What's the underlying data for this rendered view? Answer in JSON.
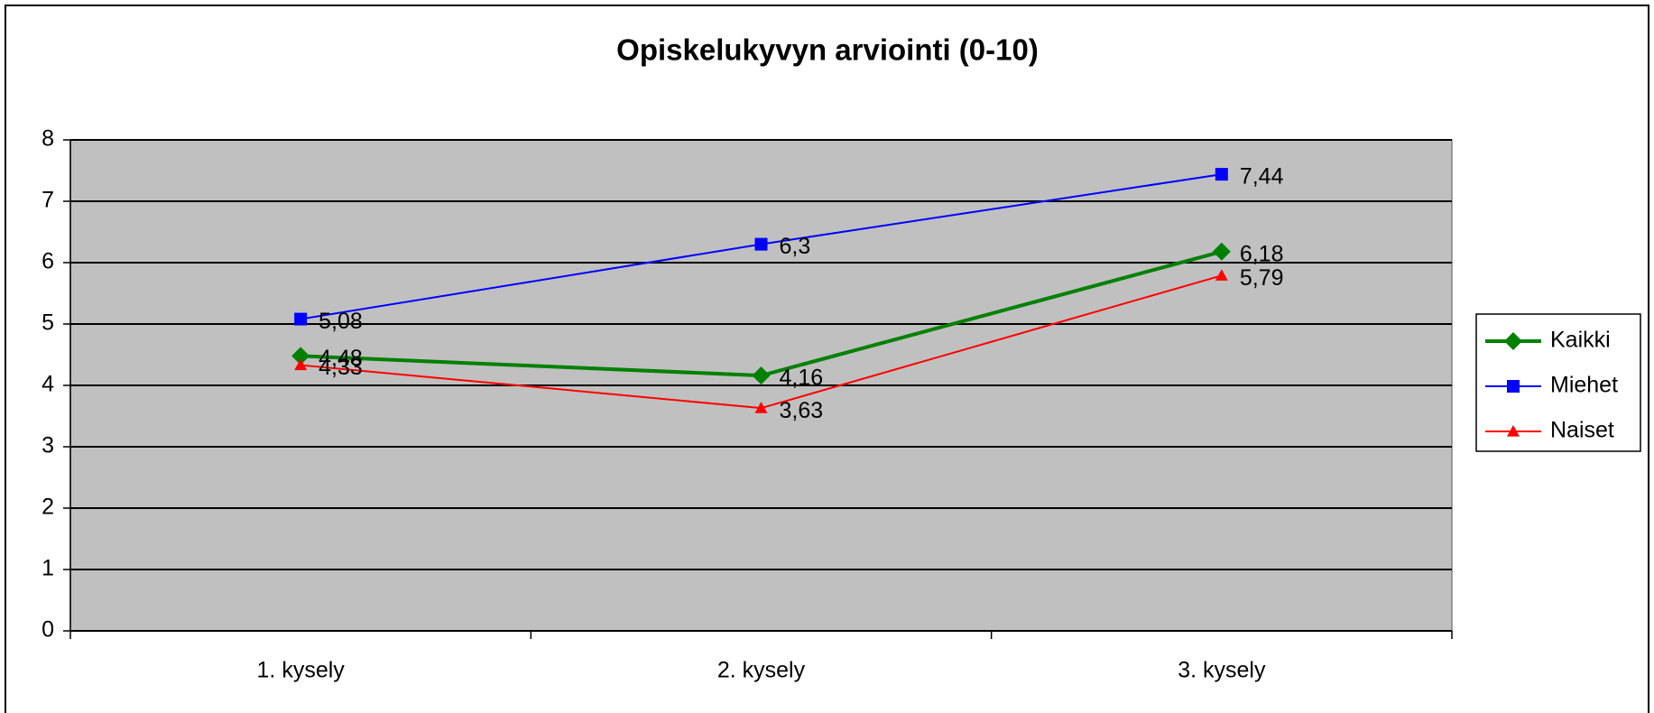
{
  "chart_data": {
    "type": "line",
    "title": "Opiskelukyvyn arviointi (0-10)",
    "categories": [
      "1. kysely",
      "2. kysely",
      "3. kysely"
    ],
    "series": [
      {
        "name": "Kaikki",
        "color": "#008000",
        "marker": "diamond",
        "width": 4,
        "values": [
          4.48,
          4.16,
          6.18
        ],
        "value_labels": [
          "4,48",
          "4,16",
          "6,18"
        ]
      },
      {
        "name": "Miehet",
        "color": "#0000ff",
        "marker": "square",
        "width": 2,
        "values": [
          5.08,
          6.3,
          7.44
        ],
        "value_labels": [
          "5,08",
          "6,3",
          "7,44"
        ]
      },
      {
        "name": "Naiset",
        "color": "#ff0000",
        "marker": "triangle",
        "width": 2,
        "values": [
          4.33,
          3.63,
          5.79
        ],
        "value_labels": [
          "4,33",
          "3,63",
          "5,79"
        ]
      }
    ],
    "ylim": [
      0,
      8
    ],
    "yticks": [
      0,
      1,
      2,
      3,
      4,
      5,
      6,
      7,
      8
    ],
    "grid": true,
    "legend": "right"
  }
}
